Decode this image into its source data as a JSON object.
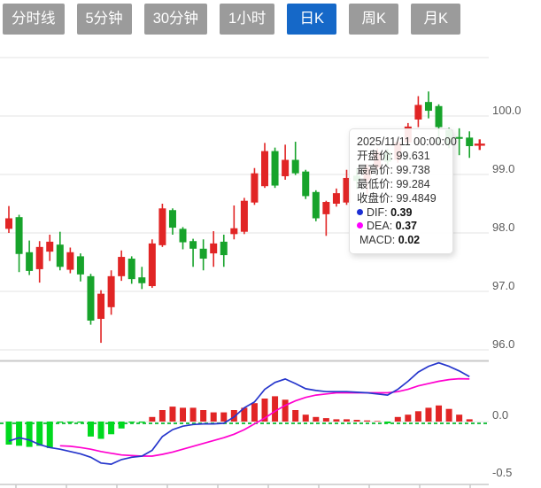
{
  "toolbar": {
    "tabs": [
      {
        "label": "分时线",
        "active": false
      },
      {
        "label": "5分钟",
        "active": false
      },
      {
        "label": "30分钟",
        "active": false
      },
      {
        "label": "1小时",
        "active": false
      },
      {
        "label": "日K",
        "active": true
      },
      {
        "label": "周K",
        "active": false
      },
      {
        "label": "月K",
        "active": false
      }
    ]
  },
  "tooltip": {
    "datetime": "2025/11/11 00:00:00",
    "open": {
      "label": "开盘价:",
      "value": "99.631"
    },
    "high": {
      "label": "最高价:",
      "value": "99.738"
    },
    "low": {
      "label": "最低价:",
      "value": "99.284"
    },
    "close": {
      "label": "收盘价:",
      "value": "99.4849"
    },
    "dif": {
      "label": "DIF:",
      "value": "0.39",
      "dot_color": "#1c2fd4"
    },
    "dea": {
      "label": "DEA:",
      "value": "0.37",
      "dot_color": "#ff00ff"
    },
    "macd": {
      "label": "MACD:",
      "value": "0.02"
    }
  },
  "chart_data": {
    "type": "candlestick+macd",
    "title": "",
    "legend_position": "tooltip",
    "grid": true,
    "price_axis": {
      "side": "right",
      "ticks": [
        {
          "v": 101.0,
          "label": ""
        },
        {
          "v": 100.0,
          "label": "100.0"
        },
        {
          "v": 99.0,
          "label": "99.0"
        },
        {
          "v": 98.0,
          "label": "98.0"
        },
        {
          "v": 97.0,
          "label": "97.0"
        },
        {
          "v": 96.0,
          "label": "96.0"
        }
      ],
      "range": [
        95.9,
        101.0
      ]
    },
    "macd_axis": {
      "side": "right",
      "ticks": [
        {
          "v": 0.0,
          "label": "0.0"
        },
        {
          "v": -0.5,
          "label": "-0.5"
        }
      ],
      "range": [
        -0.53,
        0.53
      ]
    },
    "candles": [
      {
        "o": 98.07,
        "h": 98.46,
        "l": 98.0,
        "c": 98.25
      },
      {
        "o": 98.27,
        "h": 98.31,
        "l": 97.33,
        "c": 97.64
      },
      {
        "o": 97.67,
        "h": 97.87,
        "l": 97.28,
        "c": 97.35
      },
      {
        "o": 97.38,
        "h": 97.86,
        "l": 97.15,
        "c": 97.76
      },
      {
        "o": 97.68,
        "h": 97.97,
        "l": 97.52,
        "c": 97.85
      },
      {
        "o": 97.8,
        "h": 98.02,
        "l": 97.36,
        "c": 97.42
      },
      {
        "o": 97.37,
        "h": 97.75,
        "l": 97.31,
        "c": 97.67
      },
      {
        "o": 97.6,
        "h": 97.65,
        "l": 97.17,
        "c": 97.29
      },
      {
        "o": 97.26,
        "h": 97.3,
        "l": 96.43,
        "c": 96.5
      },
      {
        "o": 96.53,
        "h": 97.02,
        "l": 96.12,
        "c": 96.96
      },
      {
        "o": 96.73,
        "h": 97.36,
        "l": 96.6,
        "c": 97.26
      },
      {
        "o": 97.26,
        "h": 97.7,
        "l": 97.18,
        "c": 97.59
      },
      {
        "o": 97.56,
        "h": 97.6,
        "l": 97.13,
        "c": 97.21
      },
      {
        "o": 97.24,
        "h": 97.42,
        "l": 97.04,
        "c": 97.14
      },
      {
        "o": 97.09,
        "h": 97.89,
        "l": 97.06,
        "c": 97.82
      },
      {
        "o": 97.79,
        "h": 98.5,
        "l": 97.76,
        "c": 98.42
      },
      {
        "o": 98.39,
        "h": 98.42,
        "l": 97.97,
        "c": 98.09
      },
      {
        "o": 98.07,
        "h": 98.1,
        "l": 97.72,
        "c": 97.84
      },
      {
        "o": 97.86,
        "h": 97.9,
        "l": 97.42,
        "c": 97.73
      },
      {
        "o": 97.73,
        "h": 97.89,
        "l": 97.36,
        "c": 97.56
      },
      {
        "o": 97.65,
        "h": 98.03,
        "l": 97.42,
        "c": 97.82
      },
      {
        "o": 97.85,
        "h": 97.97,
        "l": 97.42,
        "c": 97.62
      },
      {
        "o": 97.98,
        "h": 98.47,
        "l": 97.89,
        "c": 98.08
      },
      {
        "o": 98.02,
        "h": 98.6,
        "l": 97.98,
        "c": 98.55
      },
      {
        "o": 98.52,
        "h": 99.11,
        "l": 98.48,
        "c": 99.02
      },
      {
        "o": 98.8,
        "h": 99.54,
        "l": 98.77,
        "c": 99.4
      },
      {
        "o": 99.4,
        "h": 99.46,
        "l": 98.77,
        "c": 98.81
      },
      {
        "o": 98.97,
        "h": 99.51,
        "l": 98.91,
        "c": 99.25
      },
      {
        "o": 99.25,
        "h": 99.56,
        "l": 98.99,
        "c": 99.02
      },
      {
        "o": 99.05,
        "h": 99.08,
        "l": 98.58,
        "c": 98.63
      },
      {
        "o": 98.7,
        "h": 98.73,
        "l": 98.2,
        "c": 98.25
      },
      {
        "o": 98.32,
        "h": 98.55,
        "l": 97.95,
        "c": 98.53
      },
      {
        "o": 98.5,
        "h": 98.76,
        "l": 98.45,
        "c": 98.68
      },
      {
        "o": 98.52,
        "h": 99.08,
        "l": 98.48,
        "c": 98.94
      },
      {
        "o": 98.98,
        "h": 99.11,
        "l": 98.75,
        "c": 98.89
      },
      {
        "o": 98.9,
        "h": 99.18,
        "l": 98.67,
        "c": 99.12
      },
      {
        "o": 99.12,
        "h": 99.45,
        "l": 99.08,
        "c": 99.38
      },
      {
        "o": 99.38,
        "h": 99.44,
        "l": 99.15,
        "c": 99.22
      },
      {
        "o": 99.25,
        "h": 99.62,
        "l": 99.2,
        "c": 99.55
      },
      {
        "o": 99.55,
        "h": 99.88,
        "l": 99.5,
        "c": 99.82
      },
      {
        "o": 99.94,
        "h": 100.34,
        "l": 99.81,
        "c": 100.19
      },
      {
        "o": 100.24,
        "h": 100.42,
        "l": 99.96,
        "c": 100.09
      },
      {
        "o": 100.17,
        "h": 100.2,
        "l": 99.51,
        "c": 99.81
      },
      {
        "o": 99.76,
        "h": 99.8,
        "l": 99.45,
        "c": 99.51
      },
      {
        "o": 99.64,
        "h": 99.79,
        "l": 99.33,
        "c": 99.61
      },
      {
        "o": 99.631,
        "h": 99.738,
        "l": 99.284,
        "c": 99.4849
      }
    ],
    "macd": {
      "hist": [
        -0.2,
        -0.21,
        -0.22,
        -0.21,
        -0.23,
        -0.01,
        -0.01,
        -0.01,
        -0.13,
        -0.15,
        -0.11,
        -0.06,
        -0.01,
        -0.01,
        0.04,
        0.1,
        0.13,
        0.12,
        0.12,
        0.1,
        0.08,
        0.08,
        0.1,
        0.12,
        0.16,
        0.2,
        0.22,
        0.19,
        0.1,
        0.06,
        0.04,
        0.03,
        0.02,
        0.02,
        0.015,
        0.01,
        0.005,
        -0.015,
        0.04,
        0.06,
        0.09,
        0.12,
        0.14,
        0.11,
        0.06,
        0.02
      ],
      "dif": [
        -0.17,
        -0.14,
        -0.16,
        -0.2,
        -0.225,
        -0.24,
        -0.26,
        -0.28,
        -0.31,
        -0.36,
        -0.37,
        -0.33,
        -0.31,
        -0.3,
        -0.25,
        -0.13,
        -0.07,
        -0.04,
        -0.025,
        -0.02,
        -0.02,
        -0.015,
        0.04,
        0.12,
        0.17,
        0.28,
        0.34,
        0.37,
        0.33,
        0.285,
        0.27,
        0.26,
        0.26,
        0.26,
        0.255,
        0.25,
        0.24,
        0.23,
        0.28,
        0.35,
        0.43,
        0.48,
        0.51,
        0.48,
        0.44,
        0.39
      ],
      "dea": [
        null,
        null,
        null,
        null,
        null,
        -0.21,
        -0.215,
        -0.225,
        -0.24,
        -0.26,
        -0.275,
        -0.29,
        -0.295,
        -0.3,
        -0.3,
        -0.285,
        -0.265,
        -0.24,
        -0.215,
        -0.19,
        -0.165,
        -0.14,
        -0.11,
        -0.07,
        -0.02,
        0.03,
        0.09,
        0.14,
        0.18,
        0.21,
        0.23,
        0.24,
        0.25,
        0.25,
        0.25,
        0.25,
        0.25,
        0.25,
        0.26,
        0.28,
        0.31,
        0.33,
        0.35,
        0.365,
        0.372,
        0.37
      ]
    },
    "crosshair": {
      "slot": 46,
      "price": 99.51
    },
    "colors": {
      "up": "#e12525",
      "down": "#17a32b",
      "hist_up": "#e12525",
      "hist_down": "#00d91e",
      "dif_line": "#2636cc",
      "dea_line": "#ff00cf",
      "grid": "#e3e3e3",
      "separator": "#c9c9c9",
      "axis_text": "#5a5a5a",
      "zero_dash": "#27c24a",
      "crosshair": "#e12525"
    }
  }
}
